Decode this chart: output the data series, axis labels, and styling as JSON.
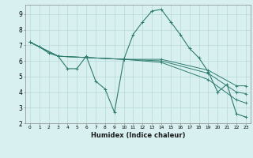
{
  "xlabel": "Humidex (Indice chaleur)",
  "ylabel": "",
  "bg_color": "#d8f0f0",
  "grid_color": "#b8d8d8",
  "line_color": "#2e7c6e",
  "xlim": [
    -0.5,
    23.5
  ],
  "ylim": [
    2,
    9.6
  ],
  "yticks": [
    2,
    3,
    4,
    5,
    6,
    7,
    8,
    9
  ],
  "xticks": [
    0,
    1,
    2,
    3,
    4,
    5,
    6,
    7,
    8,
    9,
    10,
    11,
    12,
    13,
    14,
    15,
    16,
    17,
    18,
    19,
    20,
    21,
    22,
    23
  ],
  "series": [
    {
      "x": [
        0,
        1,
        2,
        3,
        4,
        5,
        6,
        7,
        8,
        9,
        10,
        11,
        12,
        13,
        14,
        15,
        16,
        17,
        18,
        19,
        20,
        21,
        22,
        23
      ],
      "y": [
        7.2,
        6.9,
        6.5,
        6.3,
        5.5,
        5.5,
        6.3,
        4.7,
        4.2,
        2.7,
        6.1,
        7.7,
        8.5,
        9.2,
        9.3,
        8.5,
        7.7,
        6.8,
        6.2,
        5.3,
        4.0,
        4.5,
        2.6,
        2.4
      ]
    },
    {
      "x": [
        0,
        3,
        10,
        14,
        19,
        22,
        23
      ],
      "y": [
        7.2,
        6.3,
        6.1,
        6.1,
        5.4,
        4.4,
        4.4
      ]
    },
    {
      "x": [
        0,
        3,
        10,
        14,
        19,
        22,
        23
      ],
      "y": [
        7.2,
        6.3,
        6.1,
        6.0,
        5.2,
        4.0,
        3.9
      ]
    },
    {
      "x": [
        0,
        3,
        10,
        14,
        19,
        22,
        23
      ],
      "y": [
        7.2,
        6.3,
        6.1,
        5.9,
        4.8,
        3.5,
        3.3
      ]
    }
  ]
}
